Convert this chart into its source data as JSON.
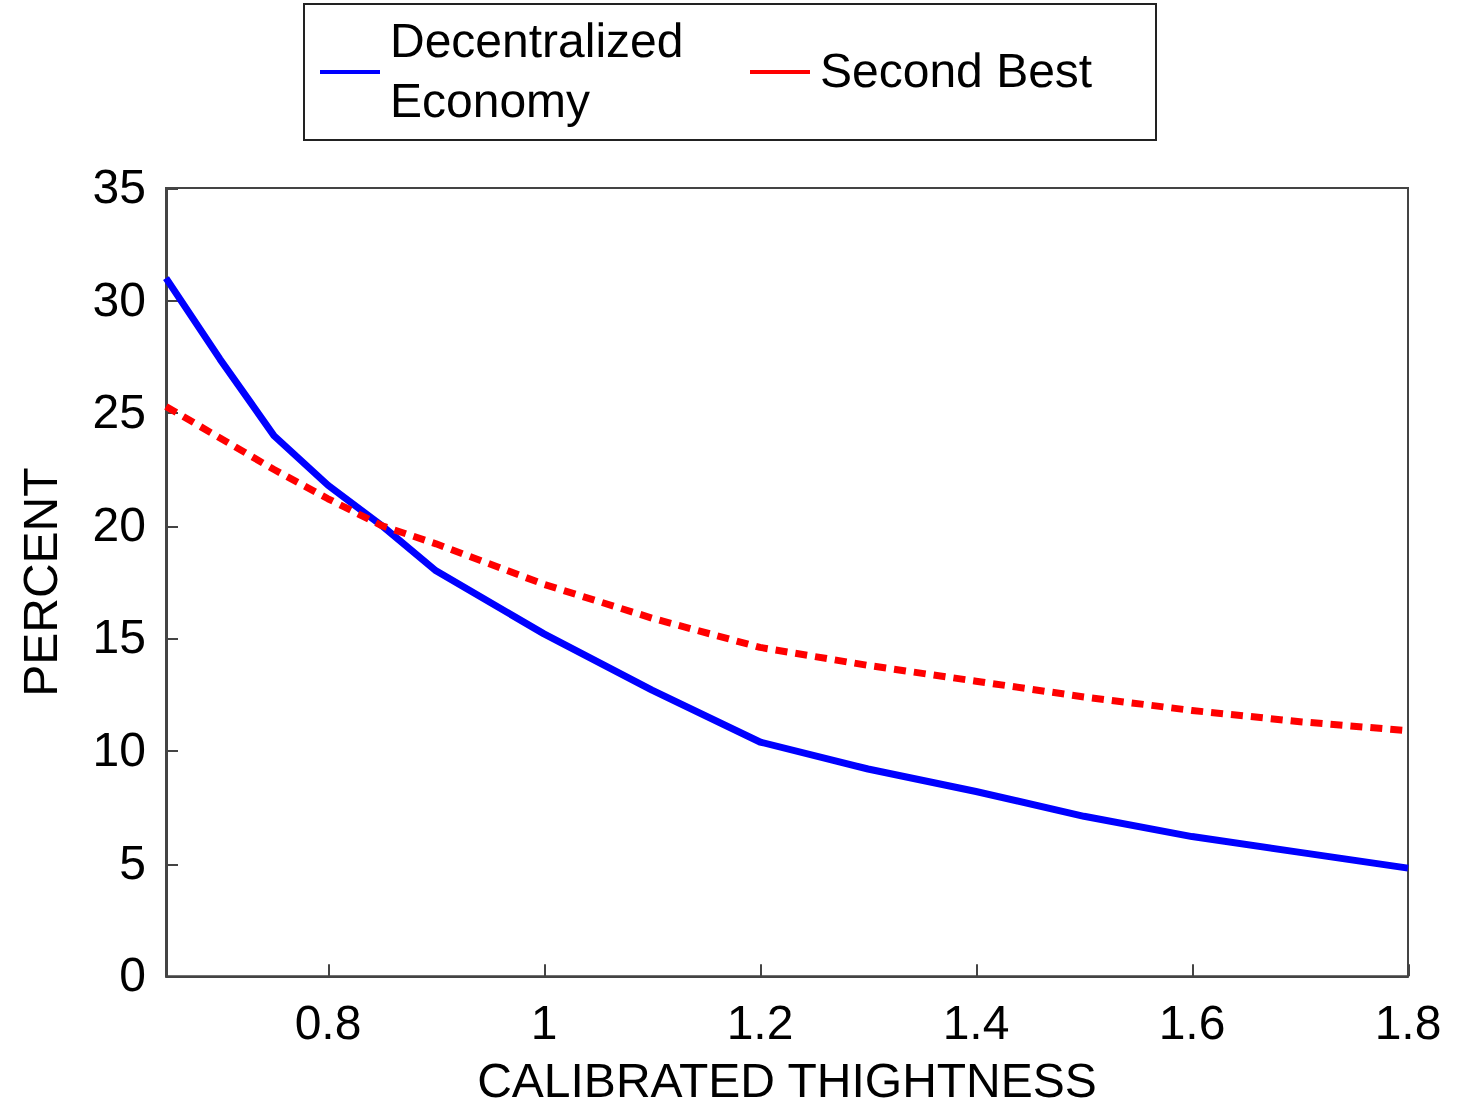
{
  "chart_data": {
    "type": "line",
    "xlabel": "CALIBRATED THIGHTNESS",
    "ylabel": "PERCENT",
    "x": [
      0.65,
      0.7,
      0.75,
      0.8,
      0.85,
      0.9,
      1.0,
      1.1,
      1.2,
      1.3,
      1.4,
      1.5,
      1.6,
      1.7,
      1.8
    ],
    "series": [
      {
        "name": "Decentralized Economy",
        "color": "#0000ff",
        "line_style": "solid",
        "values": [
          31,
          27.4,
          24.0,
          21.8,
          20.0,
          18.0,
          15.2,
          12.7,
          10.4,
          9.2,
          8.2,
          7.1,
          6.2,
          5.5,
          4.8
        ]
      },
      {
        "name": "Second Best",
        "color": "#ff0000",
        "line_style": "dashed",
        "values": [
          25.3,
          23.9,
          22.5,
          21.2,
          20.0,
          19.2,
          17.4,
          15.9,
          14.6,
          13.8,
          13.1,
          12.4,
          11.8,
          11.3,
          10.9
        ]
      }
    ],
    "xlim": [
      0.65,
      1.8
    ],
    "xticks": [
      0.8,
      1,
      1.2,
      1.4,
      1.6,
      1.8
    ],
    "ylim": [
      0,
      35
    ],
    "yticks": [
      0,
      5,
      10,
      15,
      20,
      25,
      30,
      35
    ],
    "grid": false,
    "legend": "top",
    "marker": "none"
  }
}
